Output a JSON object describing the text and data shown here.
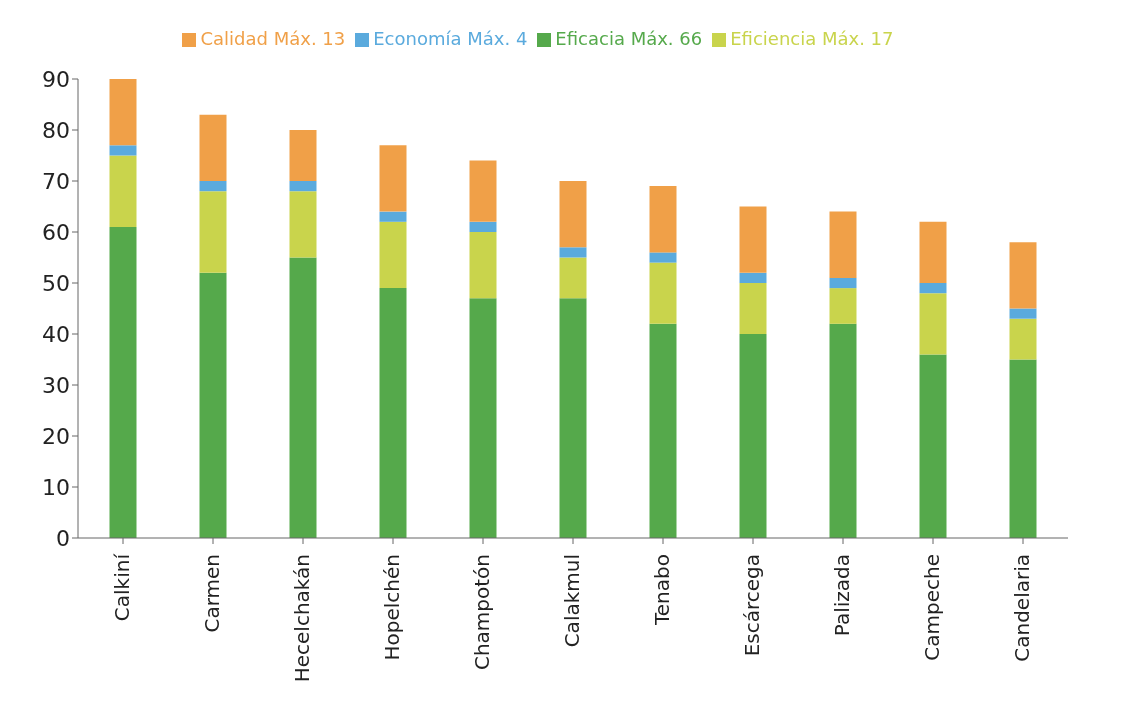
{
  "chart_data": {
    "type": "bar",
    "stacked": true,
    "legend": "top",
    "categories": [
      "Calkiní",
      "Carmen",
      "Hecelchakán",
      "Hopelchén",
      "Champotón",
      "Calakmul",
      "Tenabo",
      "Escárcega",
      "Palizada",
      "Campeche",
      "Candelaria"
    ],
    "series": [
      {
        "name": "Eficacia Máx. 66",
        "color": "#55a94b",
        "values": [
          61,
          52,
          55,
          49,
          47,
          47,
          42,
          40,
          42,
          36,
          35
        ]
      },
      {
        "name": "Eficiencia Máx. 17",
        "color": "#c9d44c",
        "values": [
          14,
          16,
          13,
          13,
          13,
          8,
          12,
          10,
          7,
          12,
          8
        ]
      },
      {
        "name": "Economía Máx. 4",
        "color": "#5aaadd",
        "values": [
          2,
          2,
          2,
          2,
          2,
          2,
          2,
          2,
          2,
          2,
          2
        ]
      },
      {
        "name": "Calidad Máx. 13",
        "color": "#f0a048",
        "values": [
          13,
          13,
          10,
          13,
          12,
          13,
          13,
          13,
          13,
          12,
          13
        ]
      }
    ],
    "ylim": [
      0,
      90
    ],
    "yticks": [
      0,
      10,
      20,
      30,
      40,
      50,
      60,
      70,
      80,
      90
    ]
  }
}
